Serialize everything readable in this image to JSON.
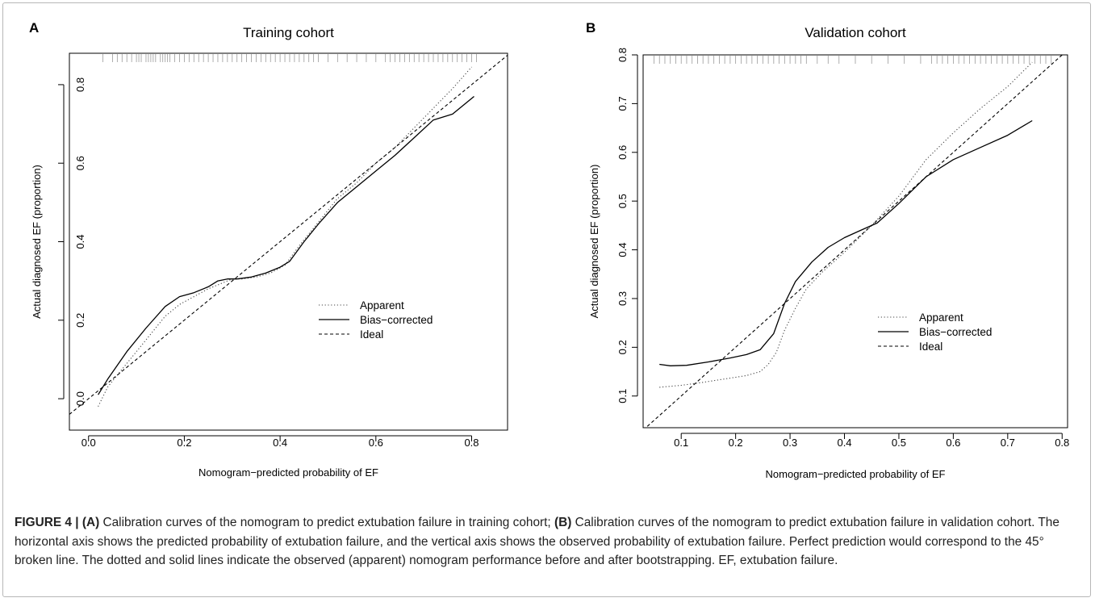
{
  "chart_data": [
    {
      "type": "line",
      "panel_letter": "A",
      "title": "Training cohort",
      "xlabel": "Nomogram−predicted probability of EF",
      "ylabel": "Actual diagnosed EF (proportion)",
      "xlim": [
        -0.04,
        0.875
      ],
      "ylim": [
        -0.08,
        0.88
      ],
      "xticks": [
        0.0,
        0.2,
        0.4,
        0.6,
        0.8
      ],
      "yticks": [
        0.0,
        0.2,
        0.4,
        0.6,
        0.8
      ],
      "xtick_labels": [
        "0.0",
        "0.2",
        "0.4",
        "0.6",
        "0.8"
      ],
      "ytick_labels": [
        "0.0",
        "0.2",
        "0.4",
        "0.6",
        "0.8"
      ],
      "grid": false,
      "legend_position": "right",
      "series": [
        {
          "name": "Apparent",
          "style": "dotted",
          "x": [
            0.02,
            0.04,
            0.08,
            0.12,
            0.16,
            0.19,
            0.22,
            0.25,
            0.28,
            0.3,
            0.32,
            0.35,
            0.38,
            0.41,
            0.44,
            0.48,
            0.52,
            0.56,
            0.6,
            0.64,
            0.68,
            0.72,
            0.76,
            0.8
          ],
          "y": [
            -0.02,
            0.03,
            0.09,
            0.15,
            0.21,
            0.24,
            0.26,
            0.28,
            0.295,
            0.305,
            0.305,
            0.31,
            0.32,
            0.34,
            0.39,
            0.45,
            0.51,
            0.55,
            0.6,
            0.64,
            0.69,
            0.74,
            0.79,
            0.845
          ]
        },
        {
          "name": "Bias−corrected",
          "style": "solid",
          "x": [
            0.02,
            0.04,
            0.08,
            0.12,
            0.16,
            0.19,
            0.22,
            0.25,
            0.27,
            0.29,
            0.31,
            0.34,
            0.37,
            0.4,
            0.42,
            0.45,
            0.48,
            0.52,
            0.56,
            0.6,
            0.64,
            0.68,
            0.72,
            0.76,
            0.805
          ],
          "y": [
            0.01,
            0.05,
            0.12,
            0.18,
            0.235,
            0.26,
            0.27,
            0.285,
            0.3,
            0.305,
            0.305,
            0.31,
            0.32,
            0.335,
            0.35,
            0.4,
            0.445,
            0.5,
            0.54,
            0.58,
            0.62,
            0.665,
            0.71,
            0.725,
            0.77
          ]
        },
        {
          "name": "Ideal",
          "style": "dashed",
          "x": [
            -0.04,
            0.875
          ],
          "y": [
            -0.04,
            0.875
          ]
        }
      ],
      "rug": [
        0.03,
        0.05,
        0.06,
        0.07,
        0.08,
        0.09,
        0.1,
        0.105,
        0.11,
        0.12,
        0.125,
        0.13,
        0.135,
        0.14,
        0.15,
        0.155,
        0.16,
        0.165,
        0.17,
        0.18,
        0.19,
        0.2,
        0.21,
        0.22,
        0.23,
        0.24,
        0.25,
        0.26,
        0.27,
        0.28,
        0.29,
        0.3,
        0.31,
        0.32,
        0.33,
        0.34,
        0.35,
        0.36,
        0.37,
        0.38,
        0.39,
        0.4,
        0.41,
        0.42,
        0.43,
        0.44,
        0.45,
        0.46,
        0.47,
        0.48,
        0.5,
        0.52,
        0.54,
        0.56,
        0.58,
        0.6,
        0.62,
        0.63,
        0.64,
        0.65,
        0.66,
        0.67,
        0.68,
        0.69,
        0.7,
        0.71,
        0.72,
        0.73,
        0.74,
        0.75,
        0.76,
        0.77,
        0.78,
        0.79,
        0.8,
        0.81
      ]
    },
    {
      "type": "line",
      "panel_letter": "B",
      "title": "Validation cohort",
      "xlabel": "Nomogram−predicted probability of EF",
      "ylabel": "Actual diagnosed EF (proportion)",
      "xlim": [
        0.03,
        0.81
      ],
      "ylim": [
        0.035,
        0.8
      ],
      "xticks": [
        0.1,
        0.2,
        0.3,
        0.4,
        0.5,
        0.6,
        0.7,
        0.8
      ],
      "yticks": [
        0.1,
        0.2,
        0.3,
        0.4,
        0.5,
        0.6,
        0.7,
        0.8
      ],
      "xtick_labels": [
        "0.1",
        "0.2",
        "0.3",
        "0.4",
        "0.5",
        "0.6",
        "0.7",
        "0.8"
      ],
      "ytick_labels": [
        "0.1",
        "0.2",
        "0.3",
        "0.4",
        "0.5",
        "0.6",
        "0.7",
        "0.8"
      ],
      "grid": false,
      "legend_position": "right",
      "series": [
        {
          "name": "Apparent",
          "style": "dotted",
          "x": [
            0.06,
            0.1,
            0.14,
            0.18,
            0.22,
            0.245,
            0.26,
            0.275,
            0.29,
            0.31,
            0.33,
            0.36,
            0.4,
            0.45,
            0.5,
            0.55,
            0.6,
            0.65,
            0.7,
            0.745
          ],
          "y": [
            0.118,
            0.122,
            0.128,
            0.135,
            0.142,
            0.15,
            0.165,
            0.19,
            0.235,
            0.28,
            0.32,
            0.355,
            0.395,
            0.45,
            0.51,
            0.585,
            0.64,
            0.69,
            0.735,
            0.785
          ]
        },
        {
          "name": "Bias−corrected",
          "style": "solid",
          "x": [
            0.06,
            0.08,
            0.11,
            0.15,
            0.19,
            0.22,
            0.245,
            0.27,
            0.29,
            0.31,
            0.34,
            0.37,
            0.4,
            0.43,
            0.46,
            0.5,
            0.55,
            0.6,
            0.65,
            0.7,
            0.745
          ],
          "y": [
            0.165,
            0.162,
            0.163,
            0.17,
            0.178,
            0.185,
            0.195,
            0.228,
            0.29,
            0.335,
            0.375,
            0.405,
            0.425,
            0.44,
            0.455,
            0.495,
            0.55,
            0.585,
            0.61,
            0.635,
            0.665
          ]
        },
        {
          "name": "Ideal",
          "style": "dashed",
          "x": [
            0.03,
            0.81
          ],
          "y": [
            0.03,
            0.81
          ]
        }
      ],
      "rug": [
        0.05,
        0.06,
        0.07,
        0.08,
        0.09,
        0.1,
        0.11,
        0.12,
        0.13,
        0.14,
        0.15,
        0.16,
        0.17,
        0.18,
        0.19,
        0.2,
        0.21,
        0.22,
        0.23,
        0.24,
        0.25,
        0.26,
        0.27,
        0.28,
        0.29,
        0.3,
        0.31,
        0.32,
        0.33,
        0.35,
        0.37,
        0.39,
        0.42,
        0.45,
        0.48,
        0.51,
        0.54,
        0.56,
        0.57,
        0.58,
        0.59,
        0.6,
        0.61,
        0.62,
        0.63,
        0.64,
        0.65,
        0.66,
        0.67,
        0.68,
        0.69,
        0.7,
        0.71,
        0.72,
        0.73,
        0.74,
        0.75,
        0.76,
        0.77,
        0.78
      ]
    }
  ],
  "caption": {
    "label": "FIGURE 4 | (A)",
    "part_a": " Calibration curves of the nomogram to predict extubation failure in training cohort; ",
    "label_b": "(B)",
    "part_b": " Calibration curves of the nomogram to predict extubation failure in validation cohort. The horizontal axis shows the predicted probability of extubation failure, and the vertical axis shows the observed probability of extubation failure. Perfect prediction would correspond to the 45° broken line. The dotted and solid lines indicate the observed (apparent) nomogram performance before and after bootstrapping. EF, extubation failure."
  }
}
